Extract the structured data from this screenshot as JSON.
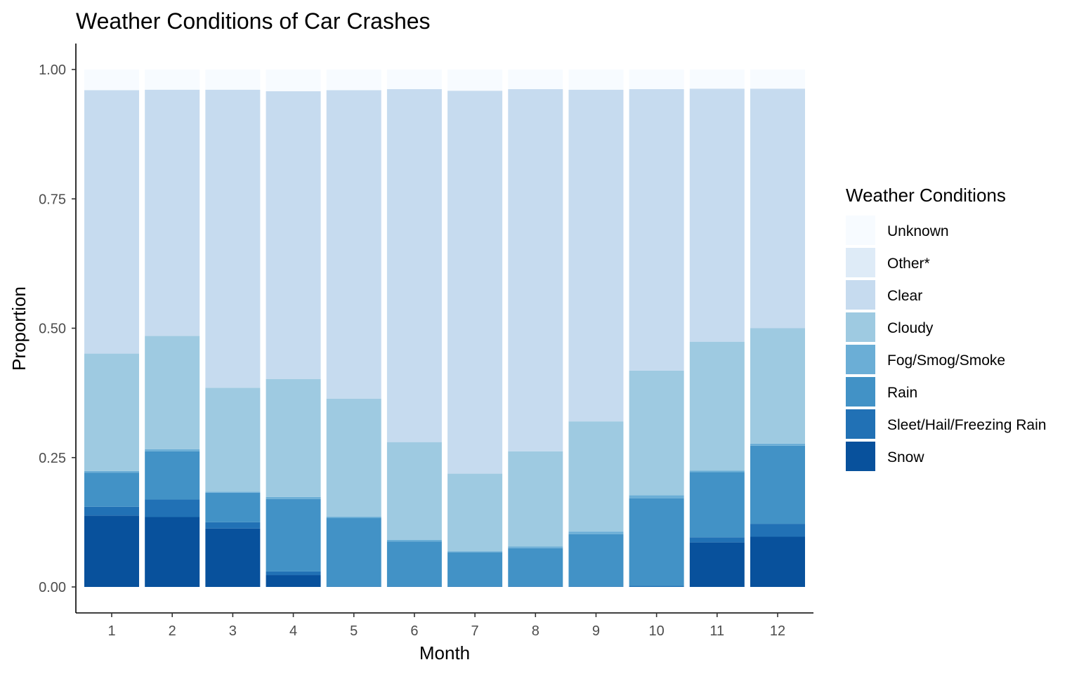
{
  "chart_data": {
    "type": "bar",
    "stacked": true,
    "title": "Weather Conditions of Car Crashes",
    "xlabel": "Month",
    "ylabel": "Proportion",
    "ylim": [
      0,
      1
    ],
    "yticks": [
      "0.00",
      "0.25",
      "0.50",
      "0.75",
      "1.00"
    ],
    "categories": [
      "1",
      "2",
      "3",
      "4",
      "5",
      "6",
      "7",
      "8",
      "9",
      "10",
      "11",
      "12"
    ],
    "legend": {
      "title": "Weather Conditions",
      "placement": "right"
    },
    "series": [
      {
        "name": "Snow",
        "color": "#08519c",
        "values": [
          0.138,
          0.135,
          0.113,
          0.023,
          0.0,
          0.0,
          0.0,
          0.0,
          0.0,
          0.0,
          0.086,
          0.097
        ]
      },
      {
        "name": "Sleet/Hail/Freezing Rain",
        "color": "#2171b5",
        "values": [
          0.017,
          0.034,
          0.012,
          0.007,
          0.001,
          0.001,
          0.001,
          0.001,
          0.001,
          0.002,
          0.01,
          0.025
        ]
      },
      {
        "name": "Rain",
        "color": "#4292c6",
        "values": [
          0.066,
          0.093,
          0.057,
          0.14,
          0.132,
          0.087,
          0.066,
          0.074,
          0.101,
          0.169,
          0.126,
          0.151
        ]
      },
      {
        "name": "Fog/Smog/Smoke",
        "color": "#6baed6",
        "values": [
          0.003,
          0.004,
          0.002,
          0.004,
          0.003,
          0.003,
          0.002,
          0.003,
          0.005,
          0.006,
          0.003,
          0.004
        ]
      },
      {
        "name": "Cloudy",
        "color": "#9ecae1",
        "values": [
          0.227,
          0.219,
          0.201,
          0.228,
          0.228,
          0.189,
          0.15,
          0.184,
          0.213,
          0.241,
          0.249,
          0.223
        ]
      },
      {
        "name": "Clear",
        "color": "#c6dbef",
        "values": [
          0.509,
          0.476,
          0.576,
          0.556,
          0.596,
          0.682,
          0.74,
          0.7,
          0.641,
          0.544,
          0.489,
          0.463
        ]
      },
      {
        "name": "Other*",
        "color": "#deebf7",
        "values": [
          0.0,
          0.0,
          0.0,
          0.0,
          0.0,
          0.0,
          0.0,
          0.0,
          0.0,
          0.0,
          0.0,
          0.0
        ]
      },
      {
        "name": "Unknown",
        "color": "#f7fbff",
        "values": [
          0.04,
          0.039,
          0.039,
          0.042,
          0.04,
          0.038,
          0.041,
          0.038,
          0.039,
          0.038,
          0.037,
          0.037
        ]
      }
    ]
  }
}
